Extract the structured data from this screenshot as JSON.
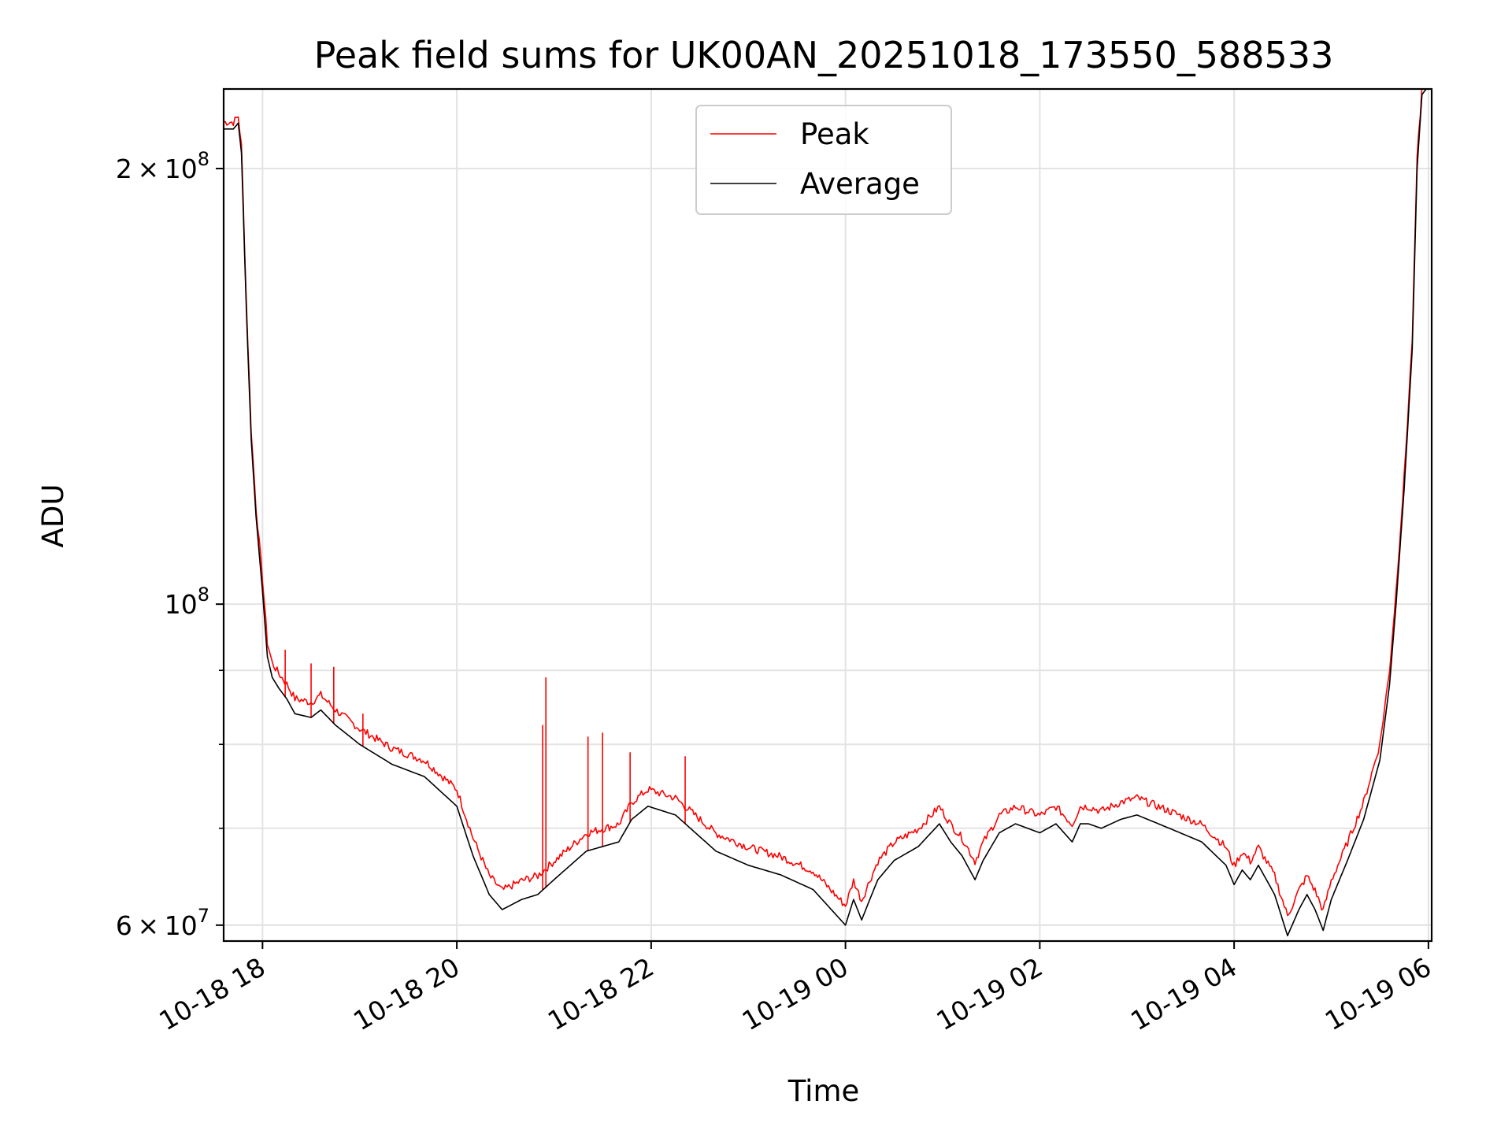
{
  "chart_data": {
    "type": "line",
    "title": "Peak field sums for UK00AN_20251018_173550_588533",
    "xlabel": "Time",
    "ylabel": "ADU",
    "y_scale": "log",
    "grid": true,
    "legend_position": "top-center",
    "xlim": [
      "2025-10-18 17:36",
      "2025-10-19 06:02"
    ],
    "ylim": [
      58500000,
      227000000
    ],
    "x_ticks": [
      {
        "value": "2025-10-18 18:00",
        "label": "10-18 18"
      },
      {
        "value": "2025-10-18 20:00",
        "label": "10-18 20"
      },
      {
        "value": "2025-10-18 22:00",
        "label": "10-18 22"
      },
      {
        "value": "2025-10-19 00:00",
        "label": "10-19 00"
      },
      {
        "value": "2025-10-19 02:00",
        "label": "10-19 02"
      },
      {
        "value": "2025-10-19 04:00",
        "label": "10-19 04"
      },
      {
        "value": "2025-10-19 06:00",
        "label": "10-19 06"
      }
    ],
    "y_ticks": [
      {
        "value": 60000000,
        "mantissa": "6",
        "exponent": "7",
        "label": "6 × 10^7"
      },
      {
        "value": 100000000,
        "mantissa": "",
        "exponent": "8",
        "label": "10^8"
      },
      {
        "value": 200000000,
        "mantissa": "2",
        "exponent": "8",
        "label": "2 × 10^8"
      }
    ],
    "y_minor_ticks": [
      60000000,
      70000000,
      80000000,
      90000000
    ],
    "series": [
      {
        "name": "Peak",
        "color": "#ff0000"
      },
      {
        "name": "Average",
        "color": "#000000"
      }
    ],
    "average": {
      "x": [
        "2025-10-18 17:36",
        "2025-10-18 17:42",
        "2025-10-18 17:45",
        "2025-10-18 17:47",
        "2025-10-18 17:50",
        "2025-10-18 17:53",
        "2025-10-18 17:56",
        "2025-10-18 18:00",
        "2025-10-18 18:03",
        "2025-10-18 18:06",
        "2025-10-18 18:10",
        "2025-10-18 18:15",
        "2025-10-18 18:20",
        "2025-10-18 18:30",
        "2025-10-18 18:36",
        "2025-10-18 18:45",
        "2025-10-18 19:00",
        "2025-10-18 19:20",
        "2025-10-18 19:40",
        "2025-10-18 20:00",
        "2025-10-18 20:10",
        "2025-10-18 20:20",
        "2025-10-18 20:28",
        "2025-10-18 20:40",
        "2025-10-18 20:50",
        "2025-10-18 21:00",
        "2025-10-18 21:20",
        "2025-10-18 21:40",
        "2025-10-18 21:48",
        "2025-10-18 21:58",
        "2025-10-18 22:15",
        "2025-10-18 22:40",
        "2025-10-18 23:00",
        "2025-10-18 23:20",
        "2025-10-18 23:40",
        "2025-10-19 00:00",
        "2025-10-19 00:05",
        "2025-10-19 00:10",
        "2025-10-19 00:15",
        "2025-10-19 00:20",
        "2025-10-19 00:30",
        "2025-10-19 00:45",
        "2025-10-19 00:58",
        "2025-10-19 01:05",
        "2025-10-19 01:12",
        "2025-10-19 01:20",
        "2025-10-19 01:25",
        "2025-10-19 01:35",
        "2025-10-19 01:45",
        "2025-10-19 02:00",
        "2025-10-19 02:10",
        "2025-10-19 02:20",
        "2025-10-19 02:25",
        "2025-10-19 02:30",
        "2025-10-19 02:38",
        "2025-10-19 02:50",
        "2025-10-19 03:00",
        "2025-10-19 03:20",
        "2025-10-19 03:40",
        "2025-10-19 03:55",
        "2025-10-19 04:00",
        "2025-10-19 04:05",
        "2025-10-19 04:10",
        "2025-10-19 04:15",
        "2025-10-19 04:25",
        "2025-10-19 04:33",
        "2025-10-19 04:40",
        "2025-10-19 04:45",
        "2025-10-19 04:50",
        "2025-10-19 04:55",
        "2025-10-19 05:00",
        "2025-10-19 05:10",
        "2025-10-19 05:20",
        "2025-10-19 05:30",
        "2025-10-19 05:36",
        "2025-10-19 05:40",
        "2025-10-19 05:45",
        "2025-10-19 05:50",
        "2025-10-19 05:53",
        "2025-10-19 05:56",
        "2025-10-19 06:00"
      ],
      "y": [
        213000000,
        213000000,
        215000000,
        205000000,
        160000000,
        130000000,
        115000000,
        102000000,
        92000000,
        89000000,
        87500000,
        86000000,
        84000000,
        83500000,
        84500000,
        82500000,
        80000000,
        77500000,
        76000000,
        72500000,
        67000000,
        63000000,
        61500000,
        62500000,
        63000000,
        64500000,
        67500000,
        68500000,
        71000000,
        72500000,
        71500000,
        67500000,
        66000000,
        65000000,
        63500000,
        60000000,
        62500000,
        60500000,
        62500000,
        64500000,
        66500000,
        68000000,
        70500000,
        68500000,
        67000000,
        64500000,
        66500000,
        69500000,
        70500000,
        69500000,
        70500000,
        68500000,
        70500000,
        70500000,
        70000000,
        71000000,
        71500000,
        70000000,
        68500000,
        66000000,
        64000000,
        65500000,
        64500000,
        66000000,
        63000000,
        59000000,
        61500000,
        63000000,
        61500000,
        59500000,
        62500000,
        66500000,
        71000000,
        78000000,
        88000000,
        100000000,
        120000000,
        150000000,
        200000000,
        225000000,
        228000000
      ]
    },
    "peak": {
      "x": [
        "2025-10-18 17:36",
        "2025-10-18 17:42",
        "2025-10-18 17:45",
        "2025-10-18 17:47",
        "2025-10-18 17:50",
        "2025-10-18 17:53",
        "2025-10-18 17:56",
        "2025-10-18 18:00",
        "2025-10-18 18:03",
        "2025-10-18 18:06",
        "2025-10-18 18:10",
        "2025-10-18 18:15",
        "2025-10-18 18:20",
        "2025-10-18 18:30",
        "2025-10-18 18:36",
        "2025-10-18 18:45",
        "2025-10-18 19:00",
        "2025-10-18 19:20",
        "2025-10-18 19:40",
        "2025-10-18 20:00",
        "2025-10-18 20:10",
        "2025-10-18 20:20",
        "2025-10-18 20:28",
        "2025-10-18 20:40",
        "2025-10-18 20:50",
        "2025-10-18 21:00",
        "2025-10-18 21:20",
        "2025-10-18 21:40",
        "2025-10-18 21:48",
        "2025-10-18 21:58",
        "2025-10-18 22:15",
        "2025-10-18 22:40",
        "2025-10-18 23:00",
        "2025-10-18 23:20",
        "2025-10-18 23:40",
        "2025-10-19 00:00",
        "2025-10-19 00:05",
        "2025-10-19 00:10",
        "2025-10-19 00:15",
        "2025-10-19 00:20",
        "2025-10-19 00:30",
        "2025-10-19 00:45",
        "2025-10-19 00:58",
        "2025-10-19 01:05",
        "2025-10-19 01:12",
        "2025-10-19 01:20",
        "2025-10-19 01:25",
        "2025-10-19 01:35",
        "2025-10-19 01:45",
        "2025-10-19 02:00",
        "2025-10-19 02:10",
        "2025-10-19 02:20",
        "2025-10-19 02:25",
        "2025-10-19 02:30",
        "2025-10-19 02:38",
        "2025-10-19 02:50",
        "2025-10-19 03:00",
        "2025-10-19 03:20",
        "2025-10-19 03:40",
        "2025-10-19 03:55",
        "2025-10-19 04:00",
        "2025-10-19 04:05",
        "2025-10-19 04:10",
        "2025-10-19 04:15",
        "2025-10-19 04:25",
        "2025-10-19 04:33",
        "2025-10-19 04:40",
        "2025-10-19 04:45",
        "2025-10-19 04:50",
        "2025-10-19 04:55",
        "2025-10-19 05:00",
        "2025-10-19 05:10",
        "2025-10-19 05:20",
        "2025-10-19 05:30",
        "2025-10-19 05:36",
        "2025-10-19 05:40",
        "2025-10-19 05:45",
        "2025-10-19 05:50",
        "2025-10-19 05:53",
        "2025-10-19 05:56",
        "2025-10-19 06:00"
      ],
      "y": [
        214000000,
        214000000,
        216000000,
        206000000,
        161000000,
        131000000,
        116000000,
        103500000,
        93500000,
        90500000,
        89000000,
        87500000,
        85500000,
        85000000,
        86000000,
        84000000,
        81500000,
        79000000,
        77500000,
        74000000,
        68500000,
        64500000,
        63000000,
        64000000,
        64500000,
        66000000,
        69000000,
        70000000,
        72500000,
        74000000,
        73000000,
        69000000,
        67500000,
        66500000,
        65000000,
        61500000,
        64000000,
        62000000,
        64000000,
        66000000,
        68000000,
        69500000,
        72000000,
        70000000,
        68500000,
        66000000,
        68000000,
        71000000,
        72000000,
        71000000,
        72000000,
        70000000,
        72000000,
        72000000,
        71500000,
        72500000,
        73000000,
        71500000,
        70000000,
        67500000,
        65500000,
        67000000,
        66000000,
        67500000,
        64500000,
        60500000,
        63000000,
        64500000,
        63000000,
        61000000,
        64000000,
        68000000,
        72500000,
        79500000,
        89500000,
        101500000,
        121500000,
        151500000,
        201500000,
        226000000,
        228000000
      ],
      "spikes": [
        {
          "x": "2025-10-18 18:14",
          "y": 93000000
        },
        {
          "x": "2025-10-18 18:30",
          "y": 91000000
        },
        {
          "x": "2025-10-18 18:44",
          "y": 90500000
        },
        {
          "x": "2025-10-18 19:02",
          "y": 84000000
        },
        {
          "x": "2025-10-18 20:53",
          "y": 82500000
        },
        {
          "x": "2025-10-18 20:55",
          "y": 89000000
        },
        {
          "x": "2025-10-18 21:21",
          "y": 81000000
        },
        {
          "x": "2025-10-18 21:30",
          "y": 81500000
        },
        {
          "x": "2025-10-18 21:47",
          "y": 79000000
        },
        {
          "x": "2025-10-18 22:21",
          "y": 78500000
        }
      ]
    }
  }
}
